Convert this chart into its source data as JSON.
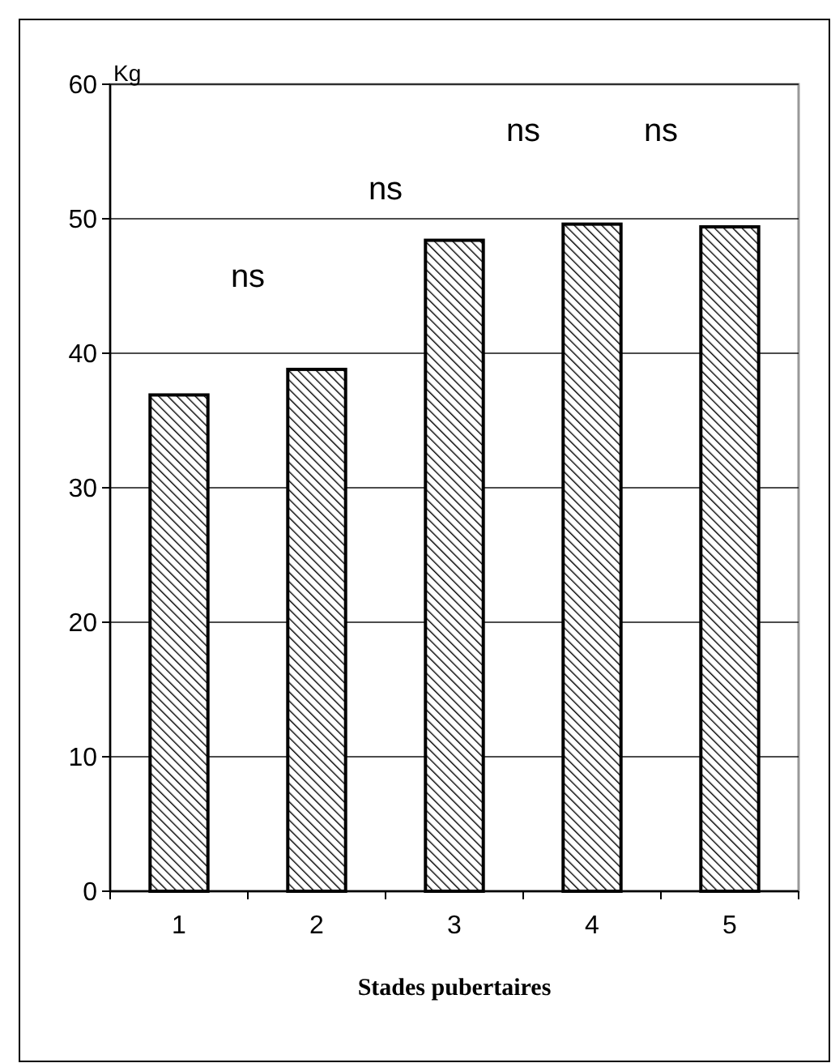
{
  "chart_data": {
    "type": "bar",
    "xlabel": "Stades pubertaires",
    "ylabel": "Kg",
    "categories": [
      "1",
      "2",
      "3",
      "4",
      "5"
    ],
    "values": [
      36.9,
      38.8,
      48.4,
      49.6,
      49.4
    ],
    "color": "#000000",
    "ylim": [
      0,
      60
    ],
    "yticks": [
      0,
      10,
      20,
      30,
      40,
      50,
      60
    ],
    "grid": "y",
    "annotations": [
      "ns",
      "ns",
      "ns",
      "ns"
    ]
  }
}
